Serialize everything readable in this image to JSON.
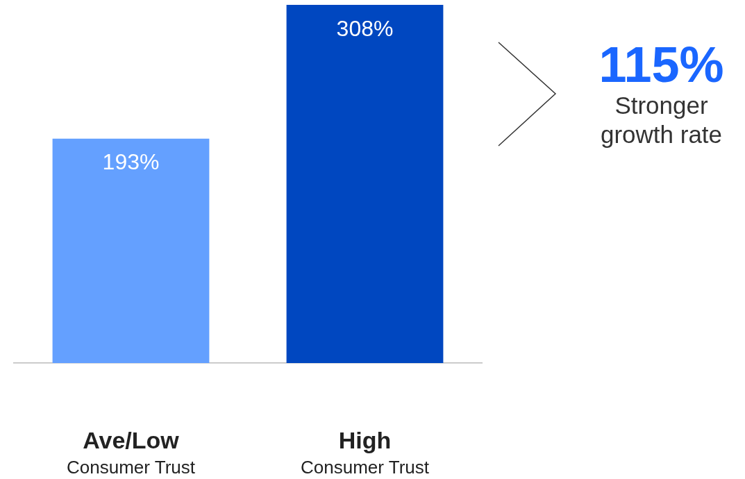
{
  "chart_data": {
    "type": "bar",
    "categories": [
      "Ave/Low\nConsumer Trust",
      "High\nConsumer Trust"
    ],
    "values": [
      193,
      308
    ],
    "colors": [
      "#64a0ff",
      "#0047c0"
    ],
    "value_labels": [
      "193%",
      "308%"
    ],
    "ylim": [
      0,
      308
    ],
    "tick_labels": "x",
    "grid": false,
    "legend": false,
    "annotations": [
      "115%",
      "Stronger growth rate"
    ]
  }
}
